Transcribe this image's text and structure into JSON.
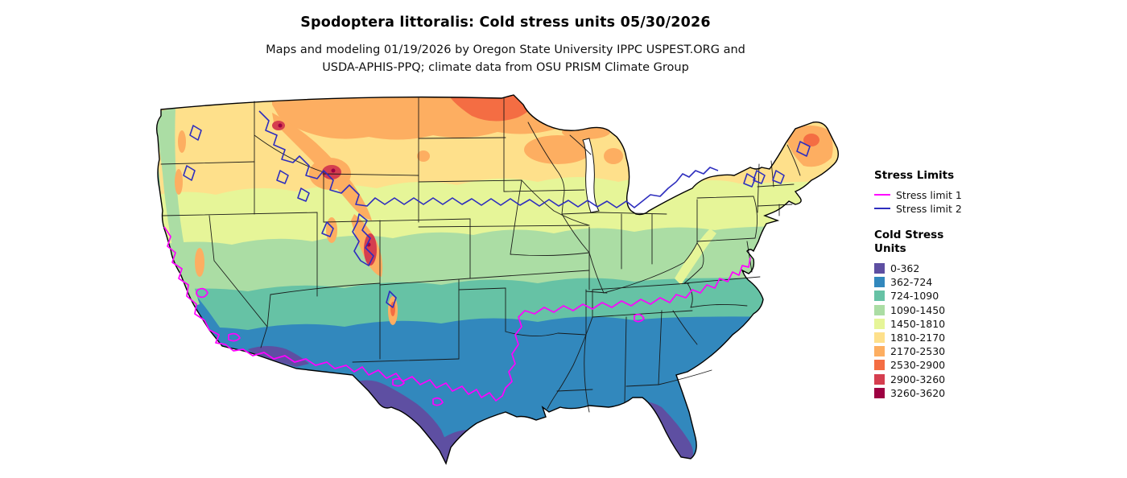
{
  "title": "Spodoptera littoralis: Cold stress units 05/30/2026",
  "subtitle_line1": "Maps and modeling 01/19/2026 by Oregon State University IPPC USPEST.ORG and",
  "subtitle_line2": "USDA-APHIS-PPQ; climate data from OSU PRISM Climate Group",
  "legend": {
    "stress_limits": {
      "heading": "Stress Limits",
      "items": [
        {
          "label": "Stress limit 1",
          "color": "#ff00ff"
        },
        {
          "label": "Stress limit 2",
          "color": "#2e2ebe"
        }
      ]
    },
    "cold_stress_units": {
      "heading_line1": "Cold Stress",
      "heading_line2": "Units",
      "items": [
        {
          "label": "0-362",
          "color": "#5e4fa2"
        },
        {
          "label": "362-724",
          "color": "#3288bd"
        },
        {
          "label": "724-1090",
          "color": "#66c2a5"
        },
        {
          "label": "1090-1450",
          "color": "#abdda4"
        },
        {
          "label": "1450-1810",
          "color": "#e6f598"
        },
        {
          "label": "1810-2170",
          "color": "#fee08b"
        },
        {
          "label": "2170-2530",
          "color": "#fdae61"
        },
        {
          "label": "2530-2900",
          "color": "#f46d43"
        },
        {
          "label": "2900-3260",
          "color": "#d53e4f"
        },
        {
          "label": "3260-3620",
          "color": "#9e0142"
        }
      ]
    }
  },
  "map": {
    "region_label": "Continental United States cold stress units raster",
    "contours": {
      "stress_limit_1_color": "#ff00ff",
      "stress_limit_2_color": "#2e2ebe"
    }
  }
}
